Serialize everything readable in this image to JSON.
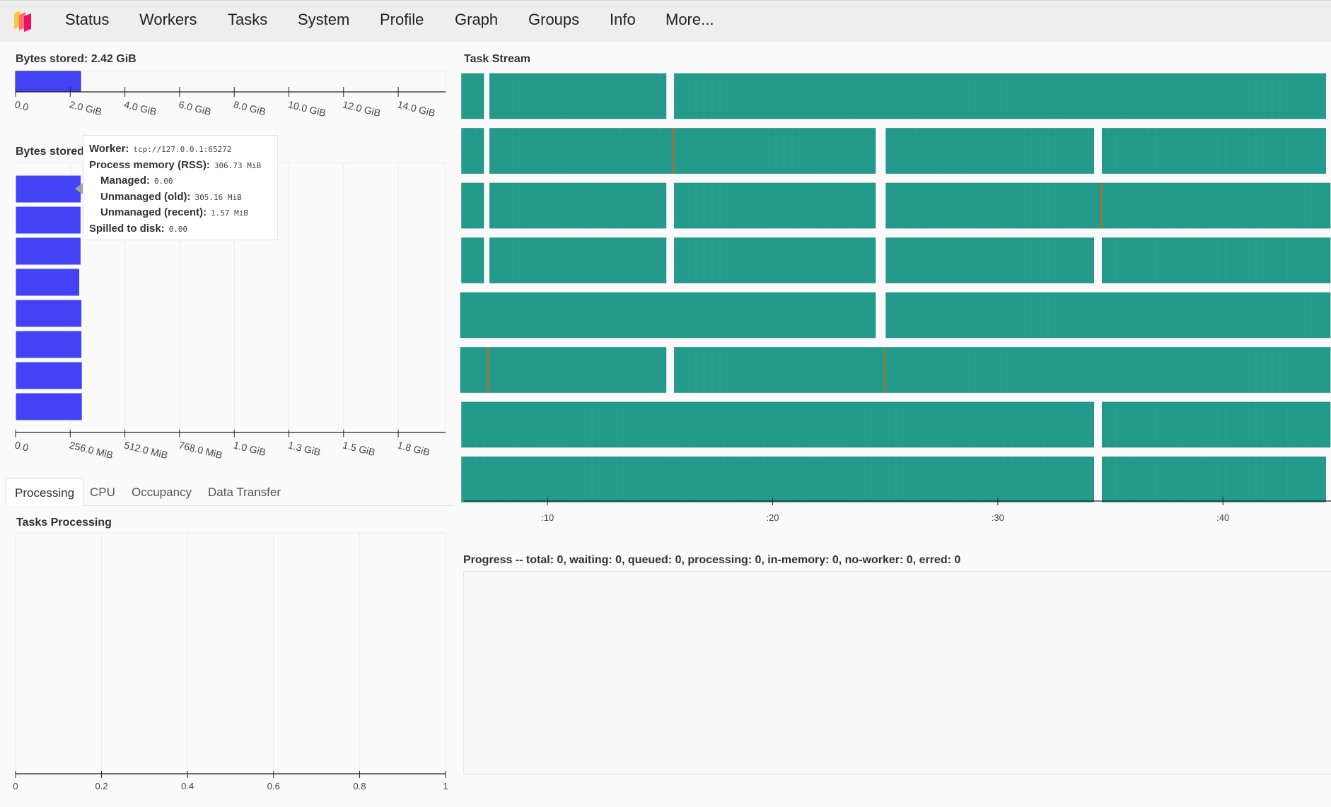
{
  "nav": {
    "items": [
      "Status",
      "Workers",
      "Tasks",
      "System",
      "Profile",
      "Graph",
      "Groups",
      "Info",
      "More..."
    ]
  },
  "memory_total": {
    "title": "Bytes stored: 2.42 GiB",
    "ticks": [
      "0.0",
      "2.0 GiB",
      "4.0 GiB",
      "6.0 GiB",
      "8.0 GiB",
      "10.0 GiB",
      "12.0 GiB",
      "14.0 GiB"
    ],
    "xlim": [
      0,
      16
    ],
    "value": 2.42
  },
  "memory_workers": {
    "title": "Bytes stored per worker",
    "ticks": [
      "0.0",
      "256.0 MiB",
      "512.0 MiB",
      "768.0 MiB",
      "1.0 GiB",
      "1.3 GiB",
      "1.5 GiB",
      "1.8 GiB"
    ],
    "xlim_mib": [
      0,
      2048
    ],
    "values_mib": [
      306.73,
      306,
      306,
      300,
      310,
      310,
      312,
      312
    ],
    "bar_color": "#4343f5"
  },
  "tooltip": {
    "worker_label": "Worker:",
    "worker_value": "tcp://127.0.0.1:65272",
    "rss_label": "Process memory (RSS):",
    "rss_value": "306.73 MiB",
    "managed_label": "Managed:",
    "managed_value": "0.00",
    "unmanaged_old_label": "Unmanaged (old):",
    "unmanaged_old_value": "305.16 MiB",
    "unmanaged_recent_label": "Unmanaged (recent):",
    "unmanaged_recent_value": "1.57 MiB",
    "spilled_label": "Spilled to disk:",
    "spilled_value": "0.00"
  },
  "tabs": {
    "items": [
      "Processing",
      "CPU",
      "Occupancy",
      "Data Transfer"
    ],
    "active": 0
  },
  "tasks_processing": {
    "title": "Tasks Processing",
    "ticks": [
      "0",
      "0.2",
      "0.4",
      "0.6",
      "0.8",
      "1"
    ],
    "xlim": [
      0,
      1
    ]
  },
  "task_stream": {
    "title": "Task Stream",
    "ticks": [
      ":10",
      ":20",
      ":30",
      ":40"
    ],
    "xlim_s": [
      6.1,
      44.8
    ],
    "color": "#239a8b",
    "accent": "#cc6611",
    "rows": [
      {
        "blocks": [
          [
            6.15,
            7.2
          ],
          [
            7.4,
            15.3
          ],
          [
            15.6,
            44.6
          ]
        ],
        "marks": []
      },
      {
        "blocks": [
          [
            6.15,
            7.2
          ],
          [
            7.4,
            24.6
          ],
          [
            25.0,
            34.3
          ],
          [
            34.6,
            44.6
          ]
        ],
        "marks": [
          15.6
        ]
      },
      {
        "blocks": [
          [
            6.15,
            7.2
          ],
          [
            7.4,
            15.3
          ],
          [
            15.6,
            24.6
          ],
          [
            25.0,
            44.8
          ]
        ],
        "marks": [
          34.6
        ]
      },
      {
        "blocks": [
          [
            6.15,
            7.2
          ],
          [
            7.4,
            15.3
          ],
          [
            15.6,
            24.6
          ],
          [
            25.0,
            34.3
          ],
          [
            34.6,
            44.8
          ]
        ],
        "marks": []
      },
      {
        "blocks": [
          [
            6.1,
            24.6
          ],
          [
            25.0,
            44.8
          ]
        ],
        "marks": []
      },
      {
        "blocks": [
          [
            6.1,
            15.3
          ],
          [
            15.6,
            44.8
          ]
        ],
        "marks": [
          7.35,
          25.0
        ]
      },
      {
        "blocks": [
          [
            6.15,
            34.3
          ],
          [
            34.6,
            44.8
          ]
        ],
        "marks": []
      },
      {
        "blocks": [
          [
            6.15,
            34.3
          ],
          [
            34.6,
            44.6
          ]
        ],
        "marks": []
      }
    ]
  },
  "progress": {
    "title": "Progress -- total: 0, waiting: 0, queued: 0, processing: 0, in-memory: 0, no-worker: 0, erred: 0"
  }
}
